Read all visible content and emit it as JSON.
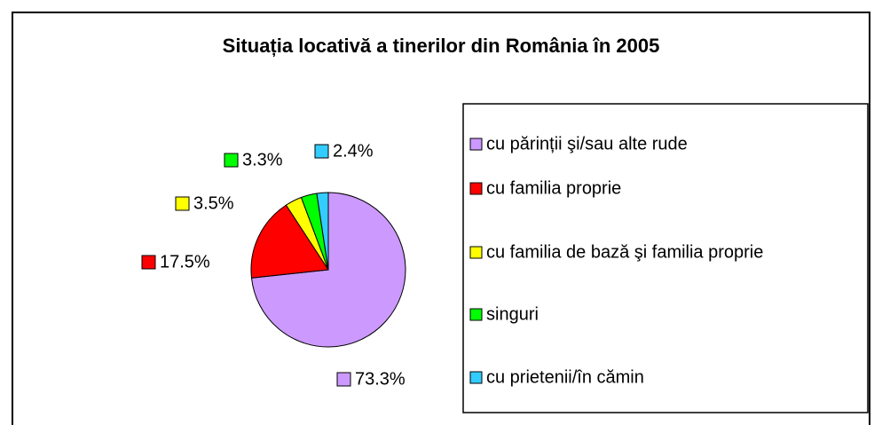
{
  "chart_data": {
    "type": "pie",
    "title": "Situația locativă a tinerilor din România în 2005",
    "categories": [
      "cu părinții şi/sau alte rude",
      "cu familia proprie",
      "cu familia de bază şi familia proprie",
      "singuri",
      "cu prietenii/în cămin"
    ],
    "values": [
      73.3,
      17.5,
      3.5,
      3.3,
      2.4
    ],
    "value_labels": [
      "73.3%",
      "17.5%",
      "3.5%",
      "3.3%",
      "2.4%"
    ],
    "colors": [
      "#cc99ff",
      "#ff0000",
      "#ffff00",
      "#00ff00",
      "#33ccff"
    ],
    "legend": "right"
  }
}
